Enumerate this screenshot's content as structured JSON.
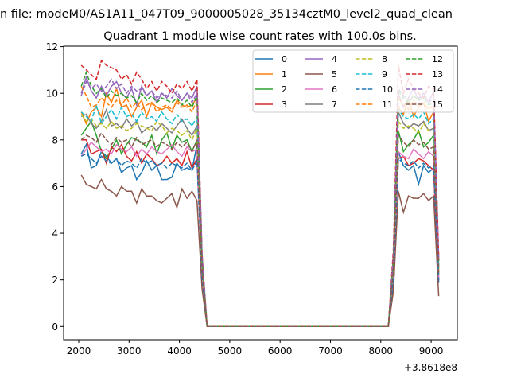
{
  "chart_data": {
    "type": "line",
    "suptitle": "n file: modeM0/AS1A11_047T09_9000005028_35134cztM0_level2_quad_clean",
    "title": "Quadrant 1 module wise count rates with 100.0s bins.",
    "xlabel": "",
    "ylabel": "",
    "x_offset_label": "+3.8618e8",
    "xlim": [
      1700,
      9520
    ],
    "ylim": [
      -0.57,
      12.02
    ],
    "xticks": [
      2000,
      3000,
      4000,
      5000,
      6000,
      7000,
      8000,
      9000
    ],
    "yticks": [
      0,
      2,
      4,
      6,
      8,
      10,
      12
    ],
    "grid": false,
    "legend_placement": "top-right",
    "x_segments": {
      "seg1_start": 2050,
      "seg1_count": 25,
      "zero_start": 4550,
      "zero_count": 37,
      "seg2_start": 8250,
      "seg2_count": 10,
      "step": 100
    },
    "series": [
      {
        "name": "0",
        "color": "#1f77b4",
        "dash": false,
        "seg1": [
          7.4,
          7.8,
          6.8,
          6.9,
          7.5,
          7.3,
          7.0,
          7.2,
          6.6,
          6.8,
          6.9,
          6.3,
          6.6,
          7.1,
          6.7,
          6.9,
          6.3,
          6.3,
          6.4,
          7.0,
          6.7,
          6.8,
          6.7,
          7.8,
          2.2
        ],
        "seg2": [
          1.8,
          7.5,
          6.9,
          6.7,
          6.9,
          6.1,
          6.9,
          6.6,
          6.8,
          1.9
        ]
      },
      {
        "name": "1",
        "color": "#ff7f0e",
        "dash": false,
        "seg1": [
          9.2,
          8.7,
          9.2,
          9.4,
          9.0,
          10.0,
          9.6,
          10.2,
          9.4,
          9.5,
          9.0,
          9.4,
          9.7,
          9.0,
          9.6,
          9.4,
          9.3,
          9.4,
          9.2,
          9.7,
          9.5,
          9.4,
          9.5,
          9.8,
          2.9
        ],
        "seg2": [
          2.8,
          9.4,
          9.1,
          9.8,
          9.0,
          9.4,
          9.6,
          8.8,
          9.2,
          2.5
        ]
      },
      {
        "name": "2",
        "color": "#2ca02c",
        "dash": false,
        "seg1": [
          8.2,
          8.5,
          8.8,
          8.2,
          7.5,
          7.2,
          7.6,
          8.0,
          7.4,
          7.8,
          8.1,
          8.0,
          7.9,
          7.7,
          8.2,
          7.4,
          8.0,
          8.3,
          7.6,
          8.2,
          7.9,
          8.0,
          7.5,
          8.0,
          2.4
        ],
        "seg2": [
          2.5,
          8.4,
          7.5,
          7.8,
          8.0,
          8.4,
          7.7,
          7.9,
          8.2,
          2.2
        ]
      },
      {
        "name": "3",
        "color": "#d62728",
        "dash": false,
        "seg1": [
          8.0,
          8.0,
          7.4,
          7.5,
          7.6,
          7.0,
          7.7,
          7.5,
          7.8,
          7.3,
          7.1,
          7.5,
          7.0,
          7.4,
          7.2,
          6.9,
          7.0,
          7.3,
          7.0,
          7.2,
          6.9,
          7.5,
          6.8,
          7.2,
          2.2
        ],
        "seg2": [
          2.2,
          7.2,
          7.3,
          6.9,
          7.0,
          7.2,
          7.1,
          6.9,
          6.7,
          2.0
        ]
      },
      {
        "name": "4",
        "color": "#9467bd",
        "dash": false,
        "seg1": [
          10.0,
          10.7,
          10.1,
          9.8,
          10.3,
          9.9,
          10.3,
          10.5,
          10.0,
          9.8,
          10.2,
          9.5,
          10.3,
          9.9,
          10.1,
          9.6,
          10.0,
          9.8,
          10.2,
          9.9,
          9.7,
          10.0,
          9.8,
          10.3,
          3.0
        ],
        "seg2": [
          3.0,
          10.0,
          9.4,
          9.8,
          10.2,
          9.7,
          10.0,
          9.6,
          10.1,
          2.8
        ]
      },
      {
        "name": "5",
        "color": "#8c564b",
        "dash": false,
        "seg1": [
          6.5,
          6.1,
          6.0,
          5.9,
          6.3,
          5.9,
          5.8,
          5.6,
          6.0,
          5.8,
          5.8,
          5.3,
          5.9,
          5.6,
          5.6,
          5.4,
          5.3,
          5.5,
          5.7,
          5.1,
          5.9,
          5.5,
          5.8,
          5.4,
          1.6
        ],
        "seg2": [
          1.5,
          5.8,
          4.9,
          5.6,
          5.5,
          5.5,
          5.7,
          5.4,
          5.6,
          1.3
        ]
      },
      {
        "name": "6",
        "color": "#e377c2",
        "dash": false,
        "seg1": [
          7.3,
          7.6,
          7.9,
          7.7,
          7.5,
          7.6,
          7.4,
          7.8,
          7.6,
          7.5,
          7.7,
          7.3,
          7.6,
          7.4,
          7.7,
          7.5,
          7.4,
          7.6,
          7.8,
          7.5,
          7.3,
          7.7,
          7.5,
          7.6,
          2.2
        ],
        "seg2": [
          2.2,
          7.5,
          7.3,
          7.2,
          7.6,
          7.4,
          7.2,
          7.5,
          7.3,
          2.1
        ]
      },
      {
        "name": "7",
        "color": "#7f7f7f",
        "dash": false,
        "seg1": [
          9.0,
          9.1,
          8.7,
          8.5,
          8.8,
          9.3,
          8.6,
          8.7,
          8.5,
          8.9,
          8.6,
          8.8,
          8.3,
          8.5,
          8.6,
          8.4,
          8.7,
          8.5,
          8.3,
          8.6,
          8.9,
          8.5,
          8.2,
          8.6,
          2.6
        ],
        "seg2": [
          2.6,
          9.2,
          8.7,
          8.5,
          8.7,
          8.6,
          8.8,
          8.4,
          8.5,
          2.5
        ]
      },
      {
        "name": "8",
        "color": "#bcbd22",
        "dash": true,
        "seg1": [
          9.1,
          8.8,
          8.9,
          8.6,
          8.7,
          8.5,
          8.8,
          8.5,
          8.6,
          8.4,
          8.5,
          8.7,
          8.6,
          8.5,
          8.4,
          8.8,
          8.6,
          8.3,
          8.5,
          8.4,
          8.2,
          8.4,
          8.0,
          8.5,
          2.5
        ],
        "seg2": [
          2.5,
          8.8,
          8.5,
          8.6,
          8.5,
          8.3,
          8.7,
          8.4,
          8.4,
          2.4
        ]
      },
      {
        "name": "9",
        "color": "#17becf",
        "dash": true,
        "seg1": [
          9.2,
          9.0,
          8.8,
          9.5,
          8.7,
          9.0,
          9.3,
          8.9,
          9.4,
          9.0,
          9.1,
          8.8,
          9.2,
          8.9,
          9.0,
          8.8,
          9.2,
          8.9,
          8.7,
          9.1,
          8.8,
          8.9,
          8.6,
          9.0,
          2.6
        ],
        "seg2": [
          2.7,
          9.3,
          9.0,
          8.9,
          9.1,
          8.9,
          9.2,
          8.7,
          8.9,
          2.6
        ]
      },
      {
        "name": "10",
        "color": "#1f77b4",
        "dash": true,
        "seg1": [
          7.3,
          7.4,
          7.2,
          7.0,
          7.3,
          7.1,
          7.0,
          7.2,
          6.9,
          7.1,
          7.0,
          6.8,
          7.2,
          7.0,
          7.1,
          6.9,
          7.0,
          6.8,
          7.0,
          6.9,
          6.8,
          7.0,
          6.7,
          7.1,
          2.1
        ],
        "seg2": [
          2.1,
          7.2,
          7.0,
          6.9,
          7.1,
          6.8,
          7.0,
          6.8,
          6.9,
          2.0
        ]
      },
      {
        "name": "11",
        "color": "#ff7f0e",
        "dash": true,
        "seg1": [
          10.3,
          9.9,
          9.4,
          9.5,
          9.8,
          9.6,
          9.4,
          9.7,
          9.5,
          9.8,
          9.4,
          9.6,
          9.3,
          9.5,
          9.6,
          9.2,
          9.4,
          9.5,
          9.3,
          9.6,
          9.4,
          9.5,
          9.2,
          9.7,
          2.8
        ],
        "seg2": [
          2.9,
          9.8,
          9.5,
          9.3,
          9.7,
          9.4,
          9.6,
          9.3,
          9.5,
          2.8
        ]
      },
      {
        "name": "12",
        "color": "#2ca02c",
        "dash": true,
        "seg1": [
          10.3,
          10.9,
          10.3,
          10.0,
          10.2,
          9.8,
          10.1,
          9.9,
          10.0,
          9.8,
          9.9,
          9.6,
          10.0,
          9.7,
          9.9,
          9.6,
          9.8,
          9.7,
          9.6,
          9.8,
          9.5,
          9.7,
          9.4,
          9.9,
          2.9
        ],
        "seg2": [
          2.9,
          10.1,
          9.8,
          9.6,
          9.9,
          9.7,
          9.8,
          9.5,
          9.6,
          2.8
        ]
      },
      {
        "name": "13",
        "color": "#d62728",
        "dash": true,
        "seg1": [
          11.2,
          11.0,
          10.8,
          10.6,
          11.4,
          11.2,
          11.1,
          11.0,
          10.6,
          10.8,
          10.4,
          10.9,
          10.6,
          10.2,
          10.5,
          10.1,
          10.5,
          10.3,
          10.0,
          10.4,
          10.2,
          10.5,
          10.1,
          10.6,
          3.1
        ],
        "seg2": [
          3.3,
          11.2,
          10.0,
          10.6,
          10.2,
          10.0,
          9.8,
          10.3,
          10.2,
          3.0
        ]
      },
      {
        "name": "14",
        "color": "#9467bd",
        "dash": true,
        "seg1": [
          9.9,
          10.5,
          10.2,
          10.4,
          10.1,
          10.3,
          10.6,
          10.2,
          10.4,
          10.0,
          10.3,
          10.1,
          10.2,
          9.9,
          10.1,
          9.8,
          10.0,
          9.9,
          9.8,
          10.1,
          9.7,
          10.0,
          9.6,
          10.0,
          3.0
        ],
        "seg2": [
          3.0,
          10.2,
          9.9,
          9.7,
          9.9,
          9.8,
          10.0,
          9.6,
          9.8,
          2.9
        ]
      },
      {
        "name": "15",
        "color": "#8c564b",
        "dash": true,
        "seg1": [
          8.0,
          8.2,
          8.1,
          7.9,
          8.3,
          8.0,
          7.8,
          8.1,
          7.9,
          8.0,
          7.7,
          8.1,
          7.8,
          7.9,
          8.0,
          7.7,
          7.9,
          7.8,
          7.6,
          7.9,
          7.7,
          7.9,
          7.5,
          8.0,
          2.4
        ],
        "seg2": [
          2.4,
          8.2,
          7.9,
          7.7,
          8.0,
          7.8,
          7.9,
          7.6,
          7.7,
          2.3
        ]
      }
    ]
  }
}
